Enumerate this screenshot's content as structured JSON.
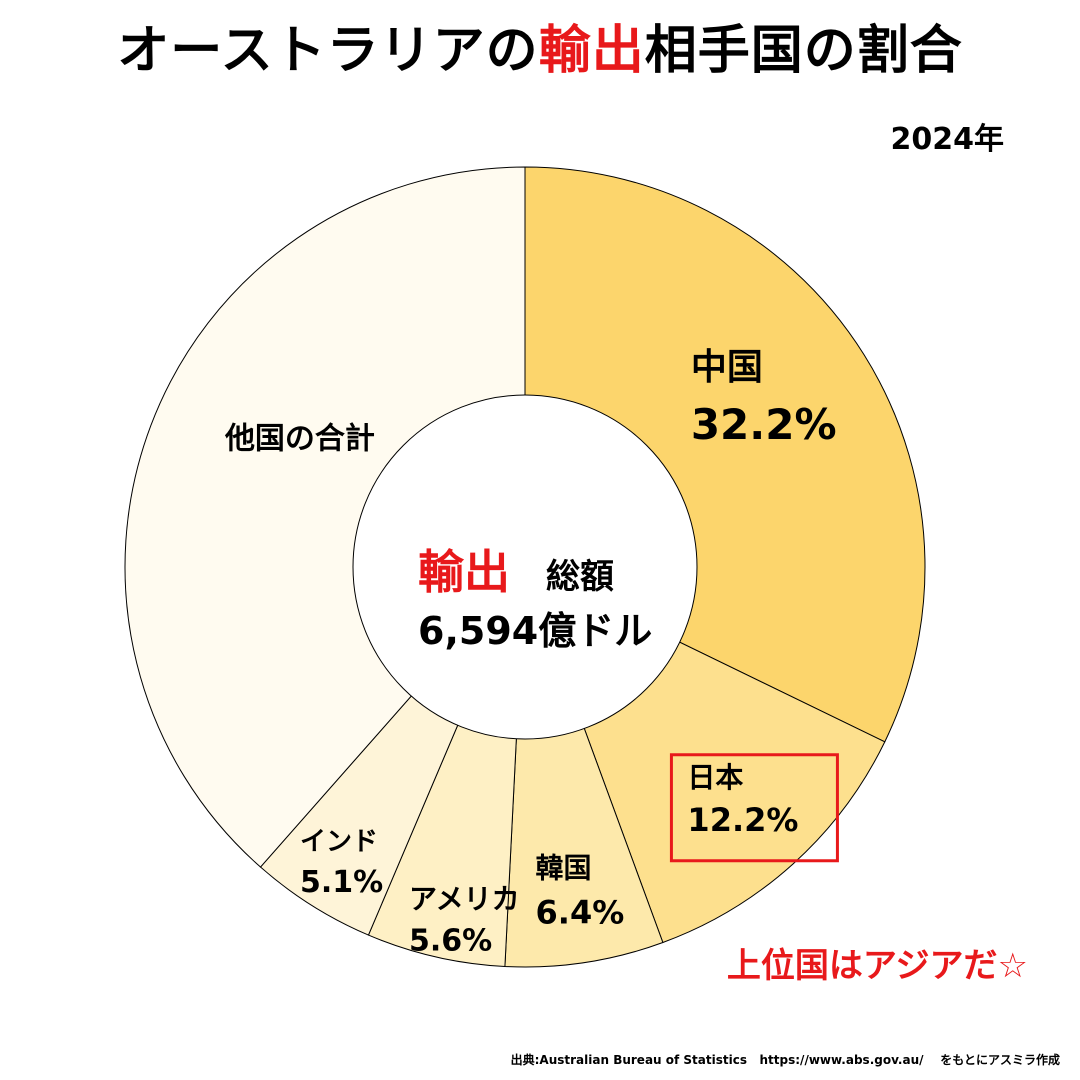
{
  "title": {
    "prefix": "オーストラリアの",
    "highlight": "輸出",
    "suffix": "相手国の割合"
  },
  "year": "2024年",
  "center": {
    "highlight": "輸出",
    "label": "総額",
    "total": "6,594億ドル"
  },
  "note": "上位国はアジアだ☆",
  "source": "出典:Australian Bureau of Statistics   https://www.abs.gov.au/    をもとにアスミラ作成",
  "chart_data": {
    "type": "pie",
    "variant": "donut",
    "start_angle_deg": 0,
    "direction": "clockwise",
    "slices": [
      {
        "name": "中国",
        "value_label": "32.2%",
        "value": 32.2,
        "color": "#fcd56c"
      },
      {
        "name": "日本",
        "value_label": "12.2%",
        "value": 12.2,
        "color": "#fde08e",
        "highlighted": true,
        "highlight_color": "#e8191b"
      },
      {
        "name": "韓国",
        "value_label": "6.4%",
        "value": 6.4,
        "color": "#fde9ab"
      },
      {
        "name": "アメリカ",
        "value_label": "5.6%",
        "value": 5.6,
        "color": "#fef0c5"
      },
      {
        "name": "インド",
        "value_label": "5.1%",
        "value": 5.1,
        "color": "#fef4d8"
      },
      {
        "name": "他国の合計",
        "value_label": "",
        "value": 38.5,
        "color": "#fffbf0"
      }
    ]
  }
}
